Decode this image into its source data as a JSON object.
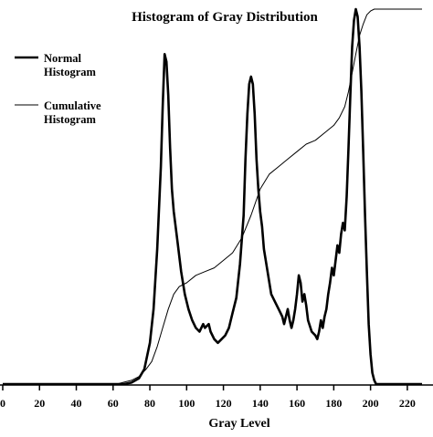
{
  "chart_data": {
    "type": "line",
    "title": "Histogram of Gray Distribution",
    "xlabel": "Gray Level",
    "ylabel": "",
    "xlim": [
      0,
      228
    ],
    "ylim": [
      0,
      1
    ],
    "x_ticks": [
      0,
      20,
      40,
      60,
      80,
      100,
      120,
      140,
      160,
      180,
      200,
      220
    ],
    "x_tick_labels": [
      "0",
      "20",
      "40",
      "60",
      "80",
      "100",
      "120",
      "140",
      "160",
      "180",
      "200",
      "220"
    ],
    "grid": false,
    "legend_position": "top-left",
    "series": [
      {
        "name": "Normal Histogram",
        "legend_lines": [
          "Normal",
          "Histogram"
        ],
        "color": "#000000",
        "style": "thick",
        "points": [
          [
            0,
            0
          ],
          [
            66,
            0
          ],
          [
            70,
            0.004
          ],
          [
            74,
            0.015
          ],
          [
            77,
            0.04
          ],
          [
            80,
            0.11
          ],
          [
            82,
            0.2
          ],
          [
            84,
            0.36
          ],
          [
            86,
            0.58
          ],
          [
            87,
            0.74
          ],
          [
            88,
            0.88
          ],
          [
            89,
            0.86
          ],
          [
            90,
            0.77
          ],
          [
            91,
            0.63
          ],
          [
            92,
            0.52
          ],
          [
            93,
            0.46
          ],
          [
            95,
            0.38
          ],
          [
            97,
            0.3
          ],
          [
            99,
            0.24
          ],
          [
            101,
            0.2
          ],
          [
            103,
            0.17
          ],
          [
            105,
            0.15
          ],
          [
            107,
            0.14
          ],
          [
            109,
            0.16
          ],
          [
            110,
            0.15
          ],
          [
            112,
            0.16
          ],
          [
            113,
            0.14
          ],
          [
            115,
            0.12
          ],
          [
            117,
            0.11
          ],
          [
            119,
            0.12
          ],
          [
            121,
            0.13
          ],
          [
            123,
            0.15
          ],
          [
            125,
            0.19
          ],
          [
            127,
            0.23
          ],
          [
            129,
            0.32
          ],
          [
            131,
            0.45
          ],
          [
            132,
            0.6
          ],
          [
            133,
            0.72
          ],
          [
            134,
            0.8
          ],
          [
            135,
            0.82
          ],
          [
            136,
            0.8
          ],
          [
            137,
            0.72
          ],
          [
            138,
            0.6
          ],
          [
            139,
            0.52
          ],
          [
            140,
            0.46
          ],
          [
            141,
            0.42
          ],
          [
            142,
            0.36
          ],
          [
            144,
            0.3
          ],
          [
            146,
            0.24
          ],
          [
            148,
            0.22
          ],
          [
            150,
            0.2
          ],
          [
            152,
            0.18
          ],
          [
            153,
            0.16
          ],
          [
            154,
            0.18
          ],
          [
            155,
            0.2
          ],
          [
            156,
            0.17
          ],
          [
            157,
            0.15
          ],
          [
            158,
            0.17
          ],
          [
            159,
            0.2
          ],
          [
            160,
            0.24
          ],
          [
            161,
            0.29
          ],
          [
            162,
            0.27
          ],
          [
            163,
            0.22
          ],
          [
            164,
            0.24
          ],
          [
            165,
            0.21
          ],
          [
            166,
            0.17
          ],
          [
            168,
            0.14
          ],
          [
            170,
            0.13
          ],
          [
            171,
            0.12
          ],
          [
            172,
            0.14
          ],
          [
            173,
            0.17
          ],
          [
            174,
            0.15
          ],
          [
            175,
            0.18
          ],
          [
            176,
            0.2
          ],
          [
            177,
            0.24
          ],
          [
            178,
            0.27
          ],
          [
            179,
            0.31
          ],
          [
            180,
            0.29
          ],
          [
            181,
            0.33
          ],
          [
            182,
            0.37
          ],
          [
            183,
            0.35
          ],
          [
            184,
            0.4
          ],
          [
            185,
            0.43
          ],
          [
            186,
            0.41
          ],
          [
            187,
            0.5
          ],
          [
            188,
            0.63
          ],
          [
            189,
            0.77
          ],
          [
            190,
            0.9
          ],
          [
            191,
            0.97
          ],
          [
            192,
            1.0
          ],
          [
            193,
            0.98
          ],
          [
            194,
            0.9
          ],
          [
            195,
            0.78
          ],
          [
            196,
            0.62
          ],
          [
            197,
            0.45
          ],
          [
            198,
            0.3
          ],
          [
            199,
            0.16
          ],
          [
            200,
            0.08
          ],
          [
            201,
            0.03
          ],
          [
            202,
            0.01
          ],
          [
            203,
            0
          ],
          [
            228,
            0
          ]
        ]
      },
      {
        "name": "Cumulative Histogram",
        "legend_lines": [
          "Cumulative",
          "Histogram"
        ],
        "color": "#000000",
        "style": "thin",
        "points": [
          [
            0,
            0
          ],
          [
            62,
            0
          ],
          [
            66,
            0.005
          ],
          [
            70,
            0.01
          ],
          [
            74,
            0.02
          ],
          [
            78,
            0.04
          ],
          [
            81,
            0.06
          ],
          [
            84,
            0.1
          ],
          [
            87,
            0.15
          ],
          [
            90,
            0.2
          ],
          [
            93,
            0.24
          ],
          [
            96,
            0.26
          ],
          [
            100,
            0.27
          ],
          [
            105,
            0.29
          ],
          [
            110,
            0.3
          ],
          [
            115,
            0.31
          ],
          [
            120,
            0.33
          ],
          [
            125,
            0.35
          ],
          [
            130,
            0.39
          ],
          [
            135,
            0.45
          ],
          [
            140,
            0.52
          ],
          [
            145,
            0.56
          ],
          [
            150,
            0.58
          ],
          [
            155,
            0.6
          ],
          [
            160,
            0.62
          ],
          [
            165,
            0.64
          ],
          [
            170,
            0.65
          ],
          [
            175,
            0.67
          ],
          [
            180,
            0.69
          ],
          [
            183,
            0.71
          ],
          [
            186,
            0.74
          ],
          [
            188,
            0.78
          ],
          [
            190,
            0.83
          ],
          [
            192,
            0.88
          ],
          [
            194,
            0.93
          ],
          [
            196,
            0.96
          ],
          [
            198,
            0.985
          ],
          [
            200,
            0.995
          ],
          [
            202,
            1.0
          ],
          [
            228,
            1.0
          ]
        ]
      }
    ]
  }
}
